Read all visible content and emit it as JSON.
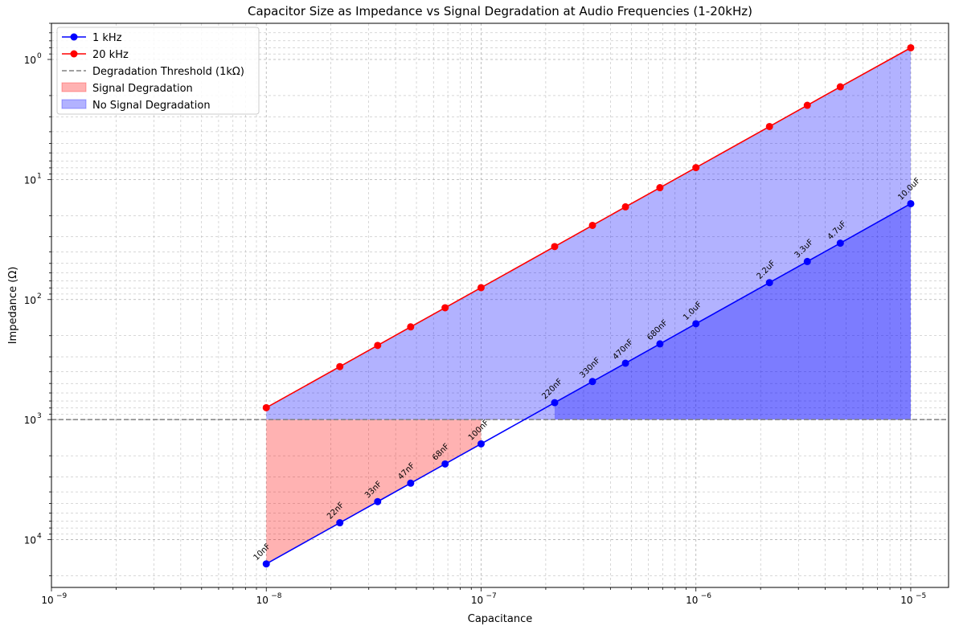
{
  "chart_data": {
    "type": "line",
    "title": "Capacitor Size as Impedance vs Signal Degradation at Audio Frequencies (1-20kHz)",
    "xlabel": "Capacitance",
    "ylabel": "Impedance (Ω)",
    "x_scale": "log",
    "y_scale": "log",
    "y_inverted": true,
    "xlim": [
      1e-09,
      1.5e-05
    ],
    "ylim": [
      25000,
      0.5
    ],
    "x_ticks": [
      {
        "value": 1e-09,
        "label": "10",
        "exp": "−9"
      },
      {
        "value": 1e-08,
        "label": "10",
        "exp": "−8"
      },
      {
        "value": 1e-07,
        "label": "10",
        "exp": "−7"
      },
      {
        "value": 1e-06,
        "label": "10",
        "exp": "−6"
      },
      {
        "value": 1e-05,
        "label": "10",
        "exp": "−5"
      }
    ],
    "y_ticks": [
      {
        "value": 1,
        "label": "10",
        "exp": "0"
      },
      {
        "value": 10,
        "label": "10",
        "exp": "1"
      },
      {
        "value": 100,
        "label": "10",
        "exp": "2"
      },
      {
        "value": 1000,
        "label": "10",
        "exp": "3"
      },
      {
        "value": 10000,
        "label": "10",
        "exp": "4"
      }
    ],
    "grid": true,
    "legend_position": "top-left",
    "x": [
      1e-08,
      2.2e-08,
      3.3e-08,
      4.7e-08,
      6.8e-08,
      1e-07,
      2.2e-07,
      3.3e-07,
      4.7e-07,
      6.8e-07,
      1e-06,
      2.2e-06,
      3.3e-06,
      4.7e-06,
      1e-05
    ],
    "point_labels": [
      "10nF",
      "22nF",
      "33nF",
      "47nF",
      "68nF",
      "100nF",
      "220nF",
      "330nF",
      "470nF",
      "680nF",
      "1.0uF",
      "2.2uF",
      "3.3uF",
      "4.7uF",
      "10.0uF"
    ],
    "series": [
      {
        "name": "1 kHz",
        "color": "#0000ff",
        "marker": "circle",
        "values": [
          15915,
          7234,
          4823,
          3386,
          2341,
          1592,
          723,
          482,
          339,
          234,
          159,
          72.3,
          48.2,
          33.9,
          15.9
        ]
      },
      {
        "name": "20 kHz",
        "color": "#ff0000",
        "marker": "circle",
        "values": [
          796,
          362,
          241,
          169,
          117,
          79.6,
          36.2,
          24.1,
          16.9,
          11.7,
          7.96,
          3.62,
          2.41,
          1.69,
          0.8
        ]
      }
    ],
    "threshold": {
      "name": "Degradation Threshold (1kΩ)",
      "value": 1000,
      "color": "#808080",
      "style": "dashed"
    },
    "fills": [
      {
        "name": "Signal Degradation",
        "color": "#ff0000",
        "opacity": 0.3,
        "x_from": 1e-08,
        "x_to": 1e-07
      },
      {
        "name": "No Signal Degradation",
        "color": "#0000ff",
        "opacity": 0.3,
        "x_from": 1e-08,
        "x_to": 1e-05
      }
    ]
  }
}
